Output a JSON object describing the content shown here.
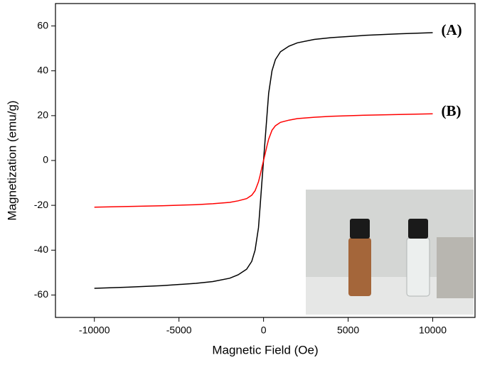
{
  "chart_data": {
    "type": "line",
    "x_label": "Magnetic Field (Oe)",
    "y_label": "Magnetization (emu/g)",
    "x": [
      -10000,
      -8000,
      -6000,
      -4000,
      -3000,
      -2000,
      -1500,
      -1000,
      -700,
      -500,
      -300,
      -200,
      -100,
      0,
      100,
      200,
      300,
      500,
      700,
      1000,
      1500,
      2000,
      3000,
      4000,
      6000,
      8000,
      10000
    ],
    "series": [
      {
        "name": "(A)",
        "color": "#000000",
        "values": [
          -57,
          -56.5,
          -55.8,
          -54.8,
          -54,
          -52.5,
          -51,
          -48.5,
          -45,
          -40,
          -30,
          -20,
          -10,
          0,
          10,
          20,
          30,
          40,
          45,
          48.5,
          51,
          52.5,
          54,
          54.8,
          55.8,
          56.5,
          57
        ]
      },
      {
        "name": "(B)",
        "color": "#ff0000",
        "values": [
          -20.8,
          -20.5,
          -20.2,
          -19.7,
          -19.3,
          -18.7,
          -18,
          -17,
          -15.5,
          -13.5,
          -9.5,
          -6.5,
          -3.2,
          0,
          3.2,
          6.5,
          9.5,
          13.5,
          15.5,
          17,
          18,
          18.7,
          19.3,
          19.7,
          20.2,
          20.5,
          20.8
        ]
      }
    ],
    "xlim": [
      -12300,
      12500
    ],
    "xticks": [
      -10000,
      -5000,
      0,
      5000,
      10000
    ],
    "ylim": [
      -70,
      70
    ],
    "yticks": [
      -60,
      -40,
      -20,
      0,
      20,
      40,
      60
    ]
  }
}
